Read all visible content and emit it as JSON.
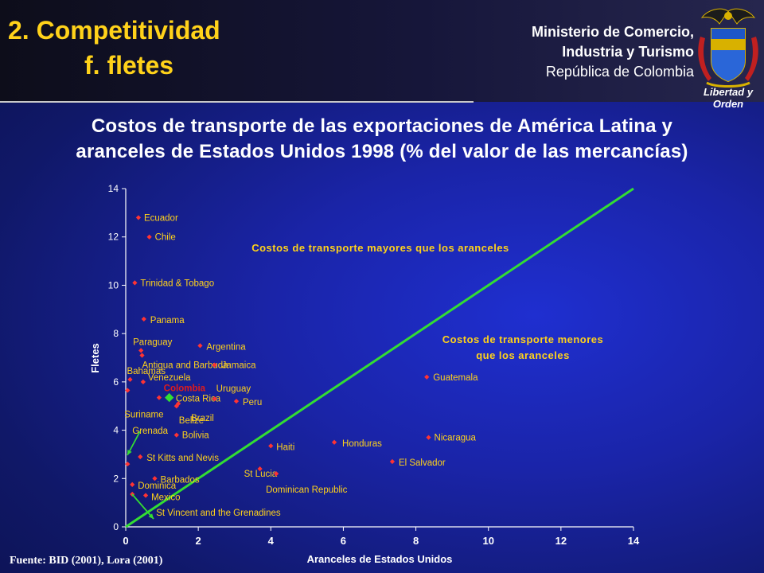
{
  "header": {
    "title": "2. Competitividad",
    "subtitle": "f. fletes",
    "ministry_line1": "Ministerio de Comercio,",
    "ministry_line2": "Industria y Turismo",
    "ministry_line3": "República de Colombia",
    "motto": "Libertad y Orden"
  },
  "heading": {
    "line1": "Costos de transporte de las exportaciones de América Latina y",
    "line2": "aranceles de Estados Unidos 1998 (% del valor de las mercancías)"
  },
  "source": "Fuente: BID (2001), Lora (2001)",
  "colors": {
    "title": "#ffd21a",
    "label": "#ffd21a",
    "highlight": "#e11b1b",
    "line": "#33dd33",
    "point": "#ff3333",
    "axis": "#ffffff"
  },
  "chart_data": {
    "type": "scatter",
    "xlabel": "Aranceles de Estados Unidos",
    "ylabel": "Fletes",
    "xlim": [
      0,
      14
    ],
    "ylim": [
      0,
      14
    ],
    "xticks": [
      0,
      2,
      4,
      6,
      8,
      10,
      12,
      14
    ],
    "yticks": [
      0,
      2,
      4,
      6,
      8,
      10,
      12,
      14
    ],
    "grid": false,
    "reference_line": {
      "x": [
        0,
        14
      ],
      "y": [
        0,
        14
      ]
    },
    "region_labels": [
      {
        "text": "Costos de transporte mayores que los aranceles"
      },
      {
        "text": "Costos de transporte menores que los aranceles"
      }
    ],
    "points": [
      {
        "name": "Ecuador",
        "x": 0.35,
        "y": 12.8
      },
      {
        "name": "Chile",
        "x": 0.65,
        "y": 12.0
      },
      {
        "name": "Trinidad & Tobago",
        "x": 0.25,
        "y": 10.1
      },
      {
        "name": "Panama",
        "x": 0.5,
        "y": 8.6
      },
      {
        "name": "Argentina",
        "x": 2.05,
        "y": 7.5
      },
      {
        "name": "Paraguay",
        "x": 0.42,
        "y": 7.3
      },
      {
        "name": "Antigua and Barbuda",
        "x": 0.45,
        "y": 7.1
      },
      {
        "name": "Jamaica",
        "x": 2.45,
        "y": 6.7
      },
      {
        "name": "Bahamas",
        "x": 0.12,
        "y": 6.1
      },
      {
        "name": "Venezuela",
        "x": 0.48,
        "y": 6.0
      },
      {
        "name": "Guatemala",
        "x": 8.3,
        "y": 6.2
      },
      {
        "name": "Colombia",
        "x": 1.2,
        "y": 5.35,
        "highlight": true
      },
      {
        "name": "Costa Rica",
        "x": 0.92,
        "y": 5.35
      },
      {
        "name": "Uruguay",
        "x": 2.45,
        "y": 5.3
      },
      {
        "name": "Peru",
        "x": 3.05,
        "y": 5.2
      },
      {
        "name": "Brazil",
        "x": 1.45,
        "y": 5.1
      },
      {
        "name": "Suriname",
        "x": 0.05,
        "y": 5.65
      },
      {
        "name": "Belize",
        "x": 1.4,
        "y": 5.0
      },
      {
        "name": "Grenada",
        "x": 0.05,
        "y": 2.6
      },
      {
        "name": "Bolivia",
        "x": 1.4,
        "y": 3.8
      },
      {
        "name": "Nicaragua",
        "x": 8.35,
        "y": 3.7
      },
      {
        "name": "Honduras",
        "x": 5.75,
        "y": 3.5
      },
      {
        "name": "Haiti",
        "x": 4.0,
        "y": 3.35
      },
      {
        "name": "St Kitts and Nevis",
        "x": 0.4,
        "y": 2.9
      },
      {
        "name": "St Lucia",
        "x": 3.7,
        "y": 2.4
      },
      {
        "name": "El Salvador",
        "x": 7.35,
        "y": 2.7
      },
      {
        "name": "Dominican Republic",
        "x": 4.15,
        "y": 2.2
      },
      {
        "name": "Barbados",
        "x": 0.8,
        "y": 2.0
      },
      {
        "name": "Dominica",
        "x": 0.18,
        "y": 1.75
      },
      {
        "name": "Mexico",
        "x": 0.55,
        "y": 1.3
      },
      {
        "name": "St Vincent and the Grenadines",
        "x": 0.18,
        "y": 1.35
      }
    ]
  }
}
